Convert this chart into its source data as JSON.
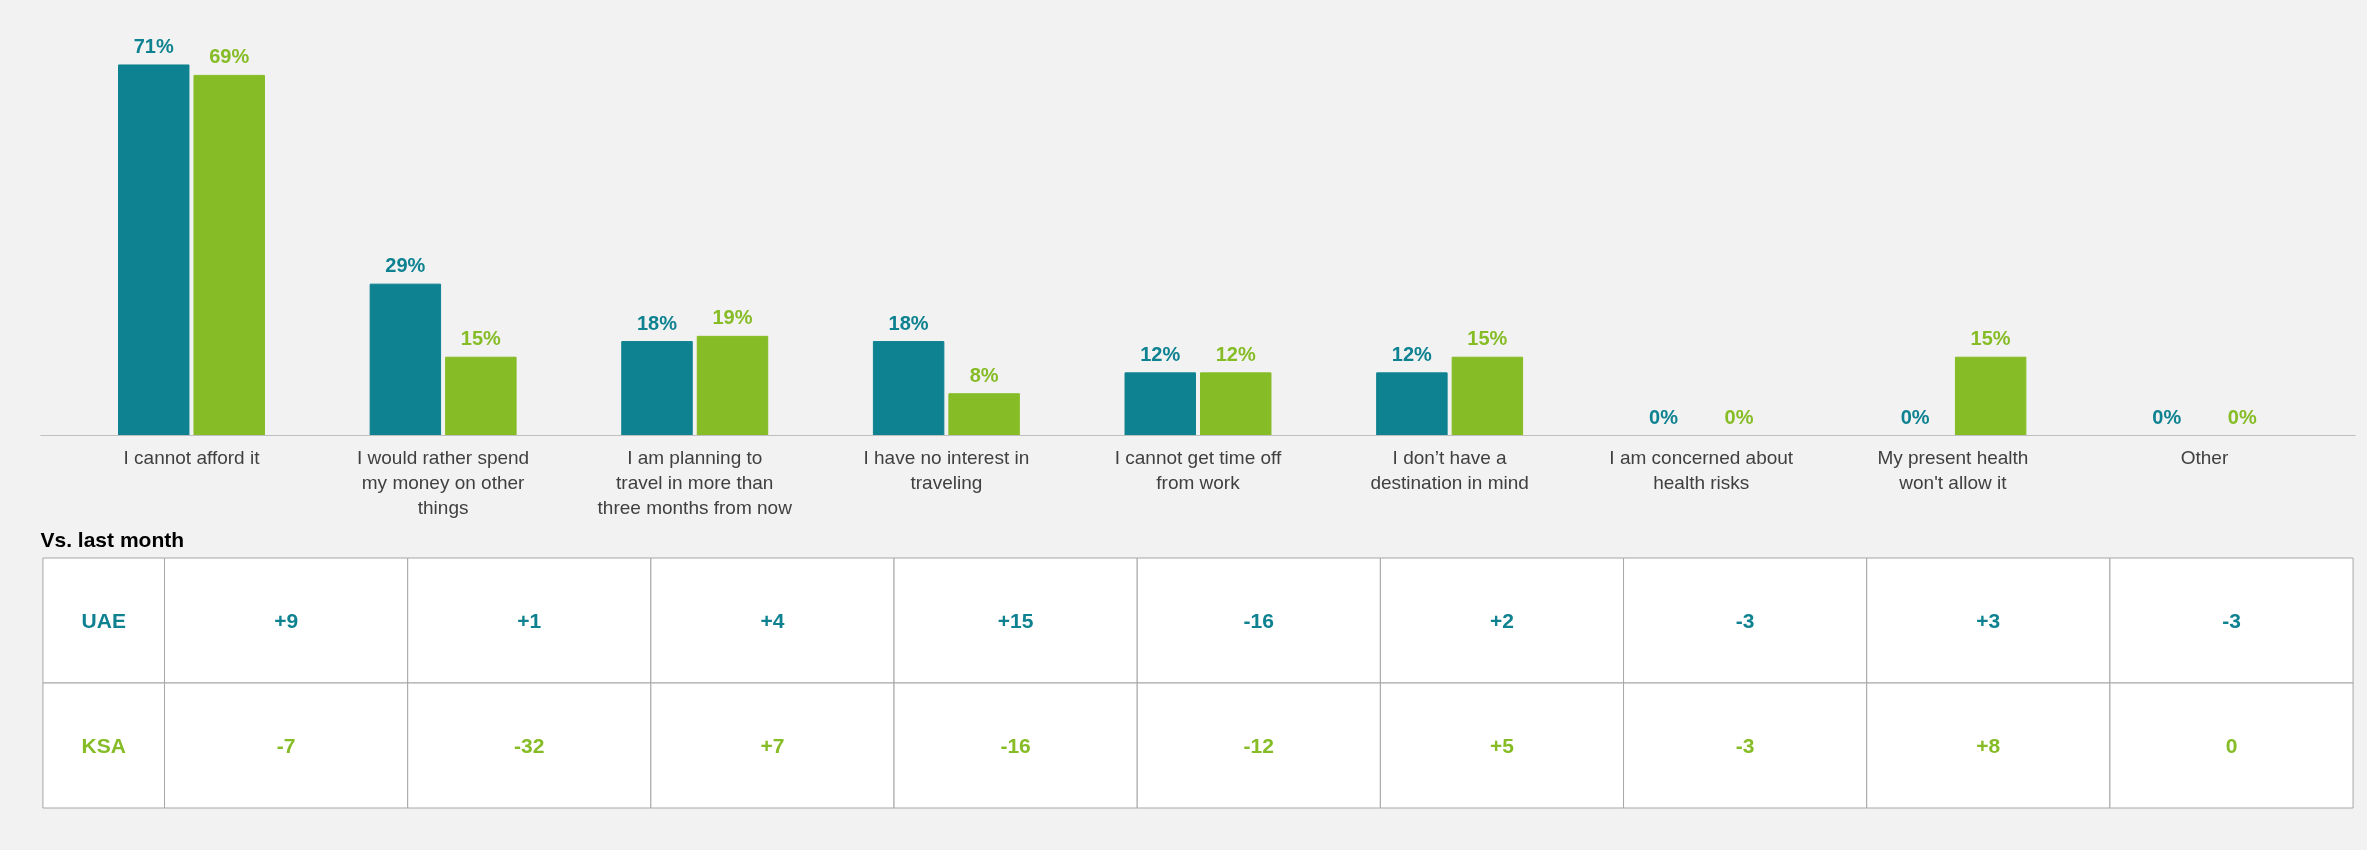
{
  "chart_data": [
    {
      "type": "bar",
      "categories": [
        "I cannot afford it",
        "I would rather spend my money on other things",
        "I am planning to travel in more than three months from now",
        "I have no interest in traveling",
        "I cannot get time off from work",
        "I don’t have a destination in mind",
        "I am concerned about health risks",
        "My present health won't allow it",
        "Other"
      ],
      "series": [
        {
          "color": "#0e8290",
          "values": [
            71,
            29,
            18,
            18,
            12,
            12,
            0,
            0,
            0
          ],
          "value_labels": [
            "71%",
            "29%",
            "18%",
            "18%",
            "12%",
            "12%",
            "0%",
            "0%",
            "0%"
          ]
        },
        {
          "color": "#86bc25",
          "values": [
            69,
            15,
            19,
            8,
            12,
            15,
            0,
            15,
            0
          ],
          "value_labels": [
            "69%",
            "15%",
            "19%",
            "8%",
            "12%",
            "15%",
            "0%",
            "15%",
            "0%"
          ]
        }
      ],
      "grid": false
    },
    {
      "type": "other",
      "title": "Vs. last month",
      "annotations": [
        "UAE",
        "+9",
        "+1",
        "+4",
        "+15",
        "-16",
        "+2",
        "-3",
        "+3",
        "-3",
        "KSA",
        "-7",
        "-32",
        "+7",
        "-16",
        "-12",
        "+5",
        "-3",
        "+8",
        "0"
      ]
    }
  ]
}
